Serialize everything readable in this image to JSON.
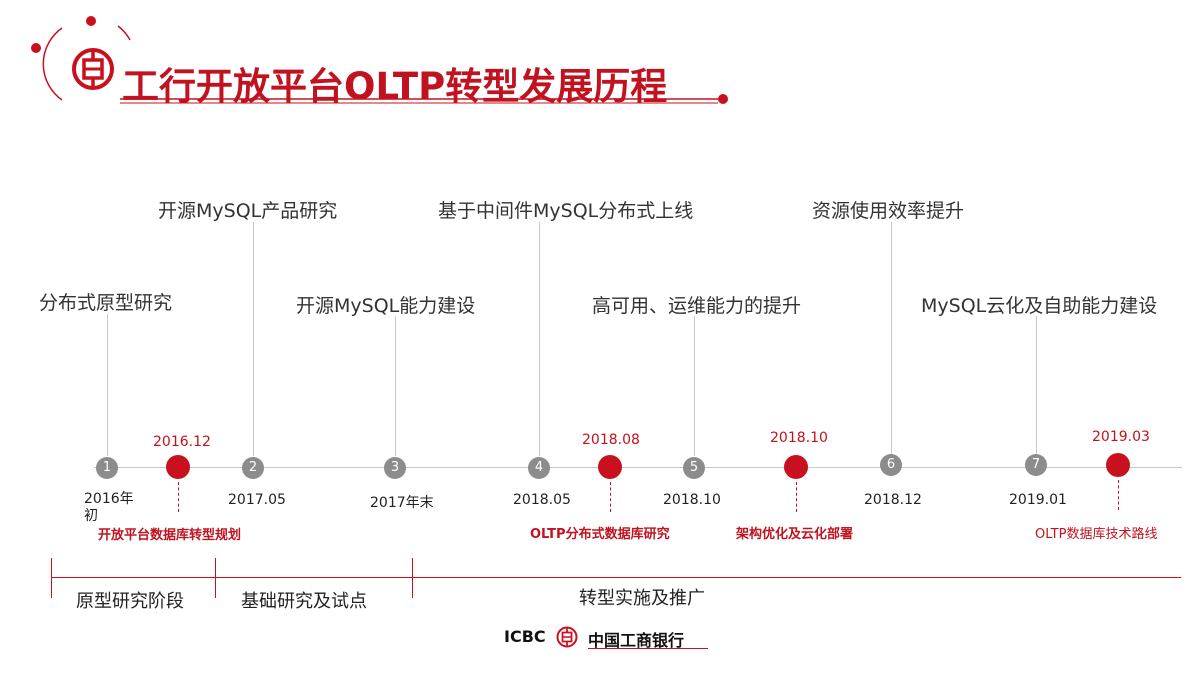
{
  "title": "工行开放平台OLTP转型发展历程",
  "milestones": [
    {
      "label": "分布式原型研究",
      "num": "1",
      "date": "2016年\n初"
    },
    {
      "label": "开源MySQL产品研究",
      "num": "2",
      "date": "2017.05"
    },
    {
      "label": "开源MySQL能力建设",
      "num": "3",
      "date": "2017年末"
    },
    {
      "label": "基于中间件MySQL分布式上线",
      "num": "4",
      "date": "2018.05"
    },
    {
      "label": "高可用、运维能力的提升",
      "num": "5",
      "date": "2018.10"
    },
    {
      "label": "资源使用效率提升",
      "num": "6",
      "date": "2018.12"
    },
    {
      "label": "MySQL云化及自助能力建设",
      "num": "7",
      "date": "2019.01"
    }
  ],
  "red_events": [
    {
      "date": "2016.12",
      "label": "开放平台数据库转型规划"
    },
    {
      "date": "2018.08",
      "label": "OLTP分布式数据库研究"
    },
    {
      "date": "2018.10",
      "label": "架构优化及云化部署"
    },
    {
      "date": "2019.03",
      "label": "OLTP数据库技术路线"
    }
  ],
  "phases": [
    {
      "label": "原型研究阶段"
    },
    {
      "label": "基础研究及试点"
    },
    {
      "label": "转型实施及推广"
    }
  ],
  "footer": {
    "brand": "ICBC",
    "bank_name": "中国工商银行"
  },
  "colors": {
    "accent": "#c8101e",
    "node_gray": "#8c8c8c"
  }
}
